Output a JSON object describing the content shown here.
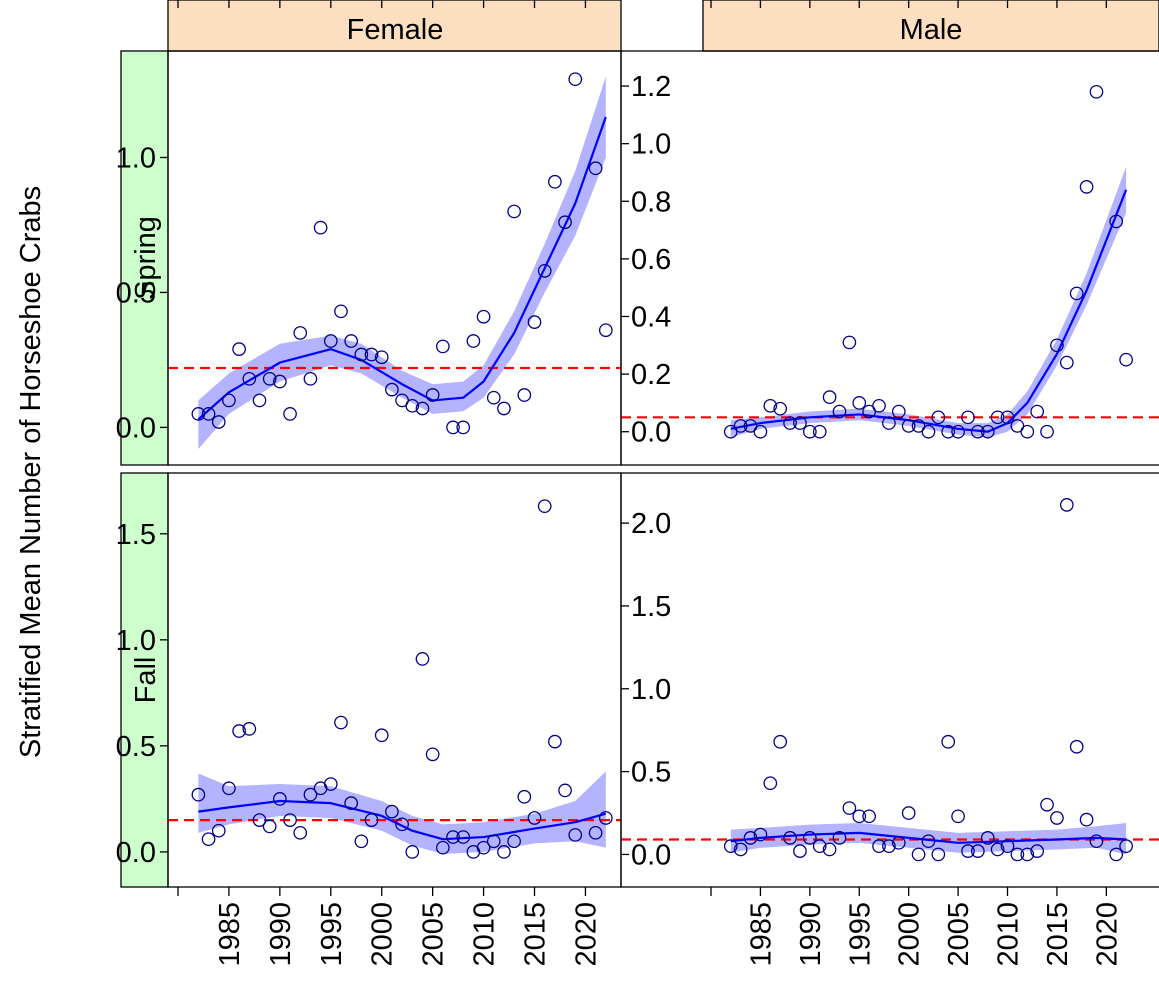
{
  "y_axis_label": "Stratified Mean Number of Horseshoe Crabs",
  "column_labels": [
    "Female",
    "Male"
  ],
  "row_labels": [
    "Spring",
    "Fall"
  ],
  "x_ticks": [
    1985,
    1990,
    1995,
    2000,
    2005,
    2010,
    2015,
    2020
  ],
  "colors": {
    "strip_column": "#FCDEC0",
    "strip_row": "#CCFFCC",
    "points": "#00008B",
    "smooth_line": "#0000FF",
    "band": "#B3B3FF",
    "reference_line": "#FF0000"
  },
  "chart_data": [
    {
      "type": "scatter",
      "column": "Female",
      "row": "Spring",
      "xlim": [
        1980,
        2023
      ],
      "ylim": [
        -0.08,
        1.35
      ],
      "y_ticks": [
        "0.0",
        "0.5",
        "1.0"
      ],
      "reference_line": 0.22,
      "points": [
        [
          1982,
          0.05
        ],
        [
          1983,
          0.05
        ],
        [
          1984,
          0.02
        ],
        [
          1985,
          0.1
        ],
        [
          1986,
          0.29
        ],
        [
          1987,
          0.18
        ],
        [
          1988,
          0.1
        ],
        [
          1989,
          0.18
        ],
        [
          1990,
          0.17
        ],
        [
          1991,
          0.05
        ],
        [
          1992,
          0.35
        ],
        [
          1993,
          0.18
        ],
        [
          1994,
          0.74
        ],
        [
          1995,
          0.32
        ],
        [
          1996,
          0.43
        ],
        [
          1997,
          0.32
        ],
        [
          1998,
          0.27
        ],
        [
          1999,
          0.27
        ],
        [
          2000,
          0.26
        ],
        [
          2001,
          0.14
        ],
        [
          2002,
          0.1
        ],
        [
          2003,
          0.08
        ],
        [
          2004,
          0.07
        ],
        [
          2005,
          0.12
        ],
        [
          2006,
          0.3
        ],
        [
          2007,
          0.0
        ],
        [
          2008,
          0.0
        ],
        [
          2009,
          0.32
        ],
        [
          2010,
          0.41
        ],
        [
          2011,
          0.11
        ],
        [
          2012,
          0.07
        ],
        [
          2013,
          0.8
        ],
        [
          2014,
          0.12
        ],
        [
          2015,
          0.39
        ],
        [
          2016,
          0.58
        ],
        [
          2017,
          0.91
        ],
        [
          2018,
          0.76
        ],
        [
          2019,
          1.29
        ],
        [
          2021,
          0.96
        ],
        [
          2022,
          0.36
        ]
      ],
      "smooth": [
        [
          1982,
          0.03
        ],
        [
          1985,
          0.13
        ],
        [
          1990,
          0.24
        ],
        [
          1995,
          0.29
        ],
        [
          1998,
          0.25
        ],
        [
          2002,
          0.16
        ],
        [
          2005,
          0.1
        ],
        [
          2008,
          0.11
        ],
        [
          2010,
          0.17
        ],
        [
          2013,
          0.35
        ],
        [
          2016,
          0.59
        ],
        [
          2019,
          0.83
        ],
        [
          2022,
          1.15
        ]
      ],
      "band": [
        [
          1982,
          -0.08,
          0.1
        ],
        [
          1985,
          0.05,
          0.2
        ],
        [
          1990,
          0.17,
          0.31
        ],
        [
          1995,
          0.23,
          0.34
        ],
        [
          1998,
          0.2,
          0.31
        ],
        [
          2002,
          0.11,
          0.21
        ],
        [
          2005,
          0.05,
          0.16
        ],
        [
          2008,
          0.06,
          0.17
        ],
        [
          2010,
          0.11,
          0.23
        ],
        [
          2013,
          0.27,
          0.43
        ],
        [
          2016,
          0.5,
          0.68
        ],
        [
          2019,
          0.71,
          0.95
        ],
        [
          2022,
          1.0,
          1.3
        ]
      ]
    },
    {
      "type": "scatter",
      "column": "Male",
      "row": "Spring",
      "xlim": [
        1980,
        2023
      ],
      "ylim": [
        -0.06,
        1.28
      ],
      "y_ticks": [
        "0.0",
        "0.2",
        "0.4",
        "0.6",
        "0.8",
        "1.0",
        "1.2"
      ],
      "reference_line": 0.05,
      "points": [
        [
          1982,
          0.0
        ],
        [
          1983,
          0.02
        ],
        [
          1984,
          0.02
        ],
        [
          1985,
          0.0
        ],
        [
          1986,
          0.09
        ],
        [
          1987,
          0.08
        ],
        [
          1988,
          0.03
        ],
        [
          1989,
          0.03
        ],
        [
          1990,
          0.0
        ],
        [
          1991,
          0.0
        ],
        [
          1992,
          0.12
        ],
        [
          1993,
          0.07
        ],
        [
          1994,
          0.31
        ],
        [
          1995,
          0.1
        ],
        [
          1996,
          0.07
        ],
        [
          1997,
          0.09
        ],
        [
          1998,
          0.03
        ],
        [
          1999,
          0.07
        ],
        [
          2000,
          0.02
        ],
        [
          2001,
          0.02
        ],
        [
          2002,
          0.0
        ],
        [
          2003,
          0.05
        ],
        [
          2004,
          0.0
        ],
        [
          2005,
          0.0
        ],
        [
          2006,
          0.05
        ],
        [
          2007,
          0.0
        ],
        [
          2008,
          0.0
        ],
        [
          2009,
          0.05
        ],
        [
          2010,
          0.05
        ],
        [
          2011,
          0.02
        ],
        [
          2012,
          0.0
        ],
        [
          2013,
          0.07
        ],
        [
          2014,
          0.0
        ],
        [
          2015,
          0.3
        ],
        [
          2016,
          0.24
        ],
        [
          2017,
          0.48
        ],
        [
          2018,
          0.85
        ],
        [
          2019,
          1.18
        ],
        [
          2021,
          0.73
        ],
        [
          2022,
          0.25
        ]
      ],
      "smooth": [
        [
          1982,
          0.01
        ],
        [
          1985,
          0.03
        ],
        [
          1990,
          0.05
        ],
        [
          1995,
          0.06
        ],
        [
          2000,
          0.04
        ],
        [
          2005,
          0.01
        ],
        [
          2008,
          0.0
        ],
        [
          2010,
          0.03
        ],
        [
          2012,
          0.1
        ],
        [
          2015,
          0.27
        ],
        [
          2018,
          0.49
        ],
        [
          2022,
          0.84
        ]
      ],
      "band": [
        [
          1982,
          -0.02,
          0.04
        ],
        [
          1985,
          0.01,
          0.05
        ],
        [
          1990,
          0.03,
          0.07
        ],
        [
          1995,
          0.04,
          0.08
        ],
        [
          2000,
          0.02,
          0.06
        ],
        [
          2005,
          -0.01,
          0.03
        ],
        [
          2008,
          -0.02,
          0.03
        ],
        [
          2010,
          0.0,
          0.06
        ],
        [
          2012,
          0.06,
          0.14
        ],
        [
          2015,
          0.23,
          0.32
        ],
        [
          2018,
          0.44,
          0.55
        ],
        [
          2022,
          0.76,
          0.92
        ]
      ]
    },
    {
      "type": "scatter",
      "column": "Female",
      "row": "Fall",
      "xlim": [
        1980,
        2023
      ],
      "ylim": [
        -0.09,
        1.73
      ],
      "y_ticks": [
        "0.0",
        "0.5",
        "1.0",
        "1.5"
      ],
      "reference_line": 0.15,
      "points": [
        [
          1982,
          0.27
        ],
        [
          1983,
          0.06
        ],
        [
          1984,
          0.1
        ],
        [
          1985,
          0.3
        ],
        [
          1986,
          0.57
        ],
        [
          1987,
          0.58
        ],
        [
          1988,
          0.15
        ],
        [
          1989,
          0.12
        ],
        [
          1990,
          0.25
        ],
        [
          1991,
          0.15
        ],
        [
          1992,
          0.09
        ],
        [
          1993,
          0.27
        ],
        [
          1994,
          0.3
        ],
        [
          1995,
          0.32
        ],
        [
          1996,
          0.61
        ],
        [
          1997,
          0.23
        ],
        [
          1998,
          0.05
        ],
        [
          1999,
          0.15
        ],
        [
          2000,
          0.55
        ],
        [
          2001,
          0.19
        ],
        [
          2002,
          0.13
        ],
        [
          2003,
          0.0
        ],
        [
          2004,
          0.91
        ],
        [
          2005,
          0.46
        ],
        [
          2006,
          0.02
        ],
        [
          2007,
          0.07
        ],
        [
          2008,
          0.07
        ],
        [
          2009,
          0.0
        ],
        [
          2010,
          0.02
        ],
        [
          2011,
          0.05
        ],
        [
          2012,
          0.0
        ],
        [
          2013,
          0.05
        ],
        [
          2014,
          0.26
        ],
        [
          2015,
          0.16
        ],
        [
          2016,
          1.63
        ],
        [
          2017,
          0.52
        ],
        [
          2018,
          0.29
        ],
        [
          2019,
          0.08
        ],
        [
          2021,
          0.09
        ],
        [
          2022,
          0.16
        ]
      ],
      "smooth": [
        [
          1982,
          0.19
        ],
        [
          1985,
          0.21
        ],
        [
          1990,
          0.24
        ],
        [
          1995,
          0.23
        ],
        [
          2000,
          0.17
        ],
        [
          2003,
          0.1
        ],
        [
          2006,
          0.06
        ],
        [
          2010,
          0.07
        ],
        [
          2015,
          0.11
        ],
        [
          2019,
          0.14
        ],
        [
          2022,
          0.18
        ]
      ],
      "band": [
        [
          1982,
          0.09,
          0.37
        ],
        [
          1985,
          0.13,
          0.31
        ],
        [
          1990,
          0.17,
          0.32
        ],
        [
          1995,
          0.16,
          0.31
        ],
        [
          2000,
          0.1,
          0.24
        ],
        [
          2003,
          0.03,
          0.17
        ],
        [
          2006,
          -0.01,
          0.13
        ],
        [
          2010,
          0.0,
          0.14
        ],
        [
          2015,
          0.04,
          0.18
        ],
        [
          2019,
          0.05,
          0.24
        ],
        [
          2022,
          0.02,
          0.38
        ]
      ]
    },
    {
      "type": "scatter",
      "column": "Male",
      "row": "Fall",
      "xlim": [
        1980,
        2023
      ],
      "ylim": [
        -0.1,
        2.23
      ],
      "y_ticks": [
        "0.0",
        "0.5",
        "1.0",
        "1.5",
        "2.0"
      ],
      "reference_line": 0.09,
      "points": [
        [
          1982,
          0.05
        ],
        [
          1983,
          0.03
        ],
        [
          1984,
          0.1
        ],
        [
          1985,
          0.12
        ],
        [
          1986,
          0.43
        ],
        [
          1987,
          0.68
        ],
        [
          1988,
          0.1
        ],
        [
          1989,
          0.02
        ],
        [
          1990,
          0.1
        ],
        [
          1991,
          0.05
        ],
        [
          1992,
          0.03
        ],
        [
          1993,
          0.1
        ],
        [
          1994,
          0.28
        ],
        [
          1995,
          0.23
        ],
        [
          1996,
          0.23
        ],
        [
          1997,
          0.05
        ],
        [
          1998,
          0.05
        ],
        [
          1999,
          0.07
        ],
        [
          2000,
          0.25
        ],
        [
          2001,
          0.0
        ],
        [
          2002,
          0.08
        ],
        [
          2003,
          0.0
        ],
        [
          2004,
          0.68
        ],
        [
          2005,
          0.23
        ],
        [
          2006,
          0.02
        ],
        [
          2007,
          0.02
        ],
        [
          2008,
          0.1
        ],
        [
          2009,
          0.03
        ],
        [
          2010,
          0.05
        ],
        [
          2011,
          0.0
        ],
        [
          2012,
          0.0
        ],
        [
          2013,
          0.02
        ],
        [
          2014,
          0.3
        ],
        [
          2015,
          0.22
        ],
        [
          2016,
          2.11
        ],
        [
          2017,
          0.65
        ],
        [
          2018,
          0.21
        ],
        [
          2019,
          0.08
        ],
        [
          2021,
          0.0
        ],
        [
          2022,
          0.05
        ]
      ],
      "smooth": [
        [
          1982,
          0.08
        ],
        [
          1985,
          0.1
        ],
        [
          1990,
          0.12
        ],
        [
          1995,
          0.13
        ],
        [
          2000,
          0.1
        ],
        [
          2005,
          0.07
        ],
        [
          2010,
          0.08
        ],
        [
          2015,
          0.09
        ],
        [
          2019,
          0.1
        ],
        [
          2022,
          0.09
        ]
      ],
      "band": [
        [
          1982,
          0.01,
          0.15
        ],
        [
          1985,
          0.04,
          0.16
        ],
        [
          1990,
          0.06,
          0.18
        ],
        [
          1995,
          0.07,
          0.19
        ],
        [
          2000,
          0.04,
          0.16
        ],
        [
          2005,
          0.01,
          0.13
        ],
        [
          2010,
          0.02,
          0.14
        ],
        [
          2015,
          0.03,
          0.15
        ],
        [
          2019,
          0.04,
          0.17
        ],
        [
          2022,
          0.0,
          0.19
        ]
      ]
    }
  ]
}
